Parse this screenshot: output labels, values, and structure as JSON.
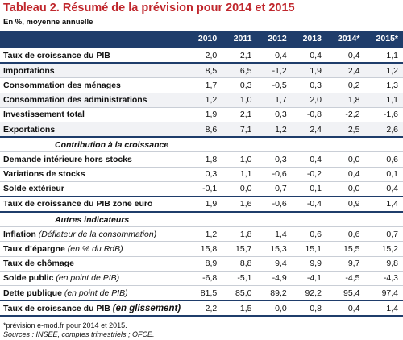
{
  "header": {
    "title": "Tableau 2. Résumé de la prévision pour 2014 et 2015",
    "unit": "En %, moyenne annuelle"
  },
  "table": {
    "columns": [
      "2010",
      "2011",
      "2012",
      "2013",
      "2014*",
      "2015*"
    ],
    "groups": [
      {
        "rows": [
          {
            "label": "Taux de croissance du PIB",
            "values": [
              "2,0",
              "2,1",
              "0,4",
              "0,4",
              "0,4",
              "1,1"
            ]
          }
        ]
      },
      {
        "rows": [
          {
            "label": "Importations",
            "values": [
              "8,5",
              "6,5",
              "-1,2",
              "1,9",
              "2,4",
              "1,2"
            ]
          },
          {
            "label": "Consommation des ménages",
            "values": [
              "1,7",
              "0,3",
              "-0,5",
              "0,3",
              "0,2",
              "1,3"
            ]
          },
          {
            "label": "Consommation des administrations",
            "values": [
              "1,2",
              "1,0",
              "1,7",
              "2,0",
              "1,8",
              "1,1"
            ]
          },
          {
            "label": "Investissement total",
            "values": [
              "1,9",
              "2,1",
              "0,3",
              "-0,8",
              "-2,2",
              "-1,6"
            ]
          },
          {
            "label": "Exportations",
            "values": [
              "8,6",
              "7,1",
              "1,2",
              "2,4",
              "2,5",
              "2,6"
            ]
          }
        ]
      },
      {
        "heading": "Contribution à la croissance",
        "rows": [
          {
            "label": "Demande intérieure hors stocks",
            "values": [
              "1,8",
              "1,0",
              "0,3",
              "0,4",
              "0,0",
              "0,6"
            ]
          },
          {
            "label": "Variations de stocks",
            "values": [
              "0,3",
              "1,1",
              "-0,6",
              "-0,2",
              "0,4",
              "0,1"
            ]
          },
          {
            "label": "Solde extérieur",
            "values": [
              "-0,1",
              "0,0",
              "0,7",
              "0,1",
              "0,0",
              "0,4"
            ]
          }
        ]
      },
      {
        "rows": [
          {
            "label": "Taux de croissance du PIB zone euro",
            "values": [
              "1,9",
              "1,6",
              "-0,6",
              "-0,4",
              "0,9",
              "1,4"
            ]
          }
        ]
      },
      {
        "heading": "Autres indicateurs",
        "rows": [
          {
            "label": "Inflation",
            "note": "(Déflateur de la consommation)",
            "values": [
              "1,2",
              "1,8",
              "1,4",
              "0,6",
              "0,6",
              "0,7"
            ]
          },
          {
            "label": "Taux d’épargne",
            "note": "(en % du RdB)",
            "values": [
              "15,8",
              "15,7",
              "15,3",
              "15,1",
              "15,5",
              "15,2"
            ]
          },
          {
            "label": "Taux de chômage",
            "values": [
              "8,9",
              "8,8",
              "9,4",
              "9,9",
              "9,7",
              "9,8"
            ]
          },
          {
            "label": "Solde public",
            "note": "(en point de PIB)",
            "values": [
              "-6,8",
              "-5,1",
              "-4,9",
              "-4,1",
              "-4,5",
              "-4,3"
            ]
          },
          {
            "label": "Dette publique",
            "note": "(en point de PIB)",
            "values": [
              "81,5",
              "85,0",
              "89,2",
              "92,2",
              "95,4",
              "97,4"
            ]
          }
        ]
      },
      {
        "rows": [
          {
            "label": "Taux de croissance du PIB",
            "note": "(en glissement)",
            "values": [
              "2,2",
              "1,5",
              "0,0",
              "0,8",
              "0,4",
              "1,4"
            ]
          }
        ]
      }
    ]
  },
  "footer": {
    "note": "*prévision e-mod.fr pour 2014 et 2015.",
    "sources": "Sources : INSEE, comptes trimestriels ; OFCE."
  }
}
